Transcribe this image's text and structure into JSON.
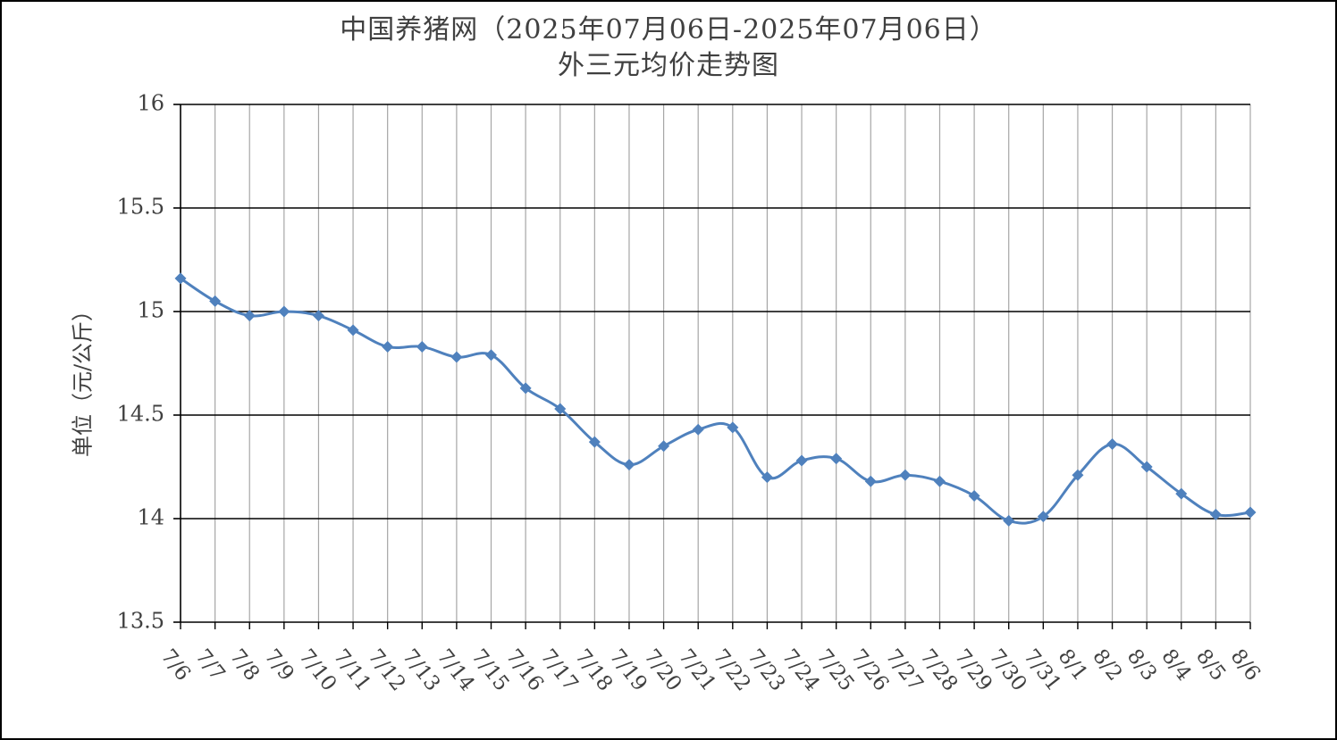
{
  "chart_data": {
    "type": "line",
    "title": "中国养猪网（2025年07月06日-2025年07月06日）",
    "subtitle": "外三元均价走势图",
    "ylabel": "单位（元/公斤）",
    "xlabel": "",
    "ylim": [
      13.5,
      16
    ],
    "yticks": [
      "13.5",
      "14",
      "14.5",
      "15",
      "15.5",
      "16"
    ],
    "ytick_values": [
      13.5,
      14,
      14.5,
      15,
      15.5,
      16
    ],
    "grid": true,
    "legend": "none",
    "line_color": "#4F81BD",
    "categories": [
      "7/6",
      "7/7",
      "7/8",
      "7/9",
      "7/10",
      "7/11",
      "7/12",
      "7/13",
      "7/14",
      "7/15",
      "7/16",
      "7/17",
      "7/18",
      "7/19",
      "7/20",
      "7/21",
      "7/22",
      "7/23",
      "7/24",
      "7/25",
      "7/26",
      "7/27",
      "7/28",
      "7/29",
      "7/30",
      "7/31",
      "8/1",
      "8/2",
      "8/3",
      "8/4",
      "8/5",
      "8/6"
    ],
    "series": [
      {
        "values": [
          15.16,
          15.05,
          14.98,
          15.0,
          14.98,
          14.91,
          14.83,
          14.83,
          14.78,
          14.79,
          14.63,
          14.53,
          14.37,
          14.26,
          14.35,
          14.43,
          14.44,
          14.2,
          14.28,
          14.29,
          14.18,
          14.21,
          14.18,
          14.11,
          13.99,
          14.01,
          14.21,
          14.36,
          14.25,
          14.12,
          14.02,
          14.03
        ]
      }
    ]
  }
}
